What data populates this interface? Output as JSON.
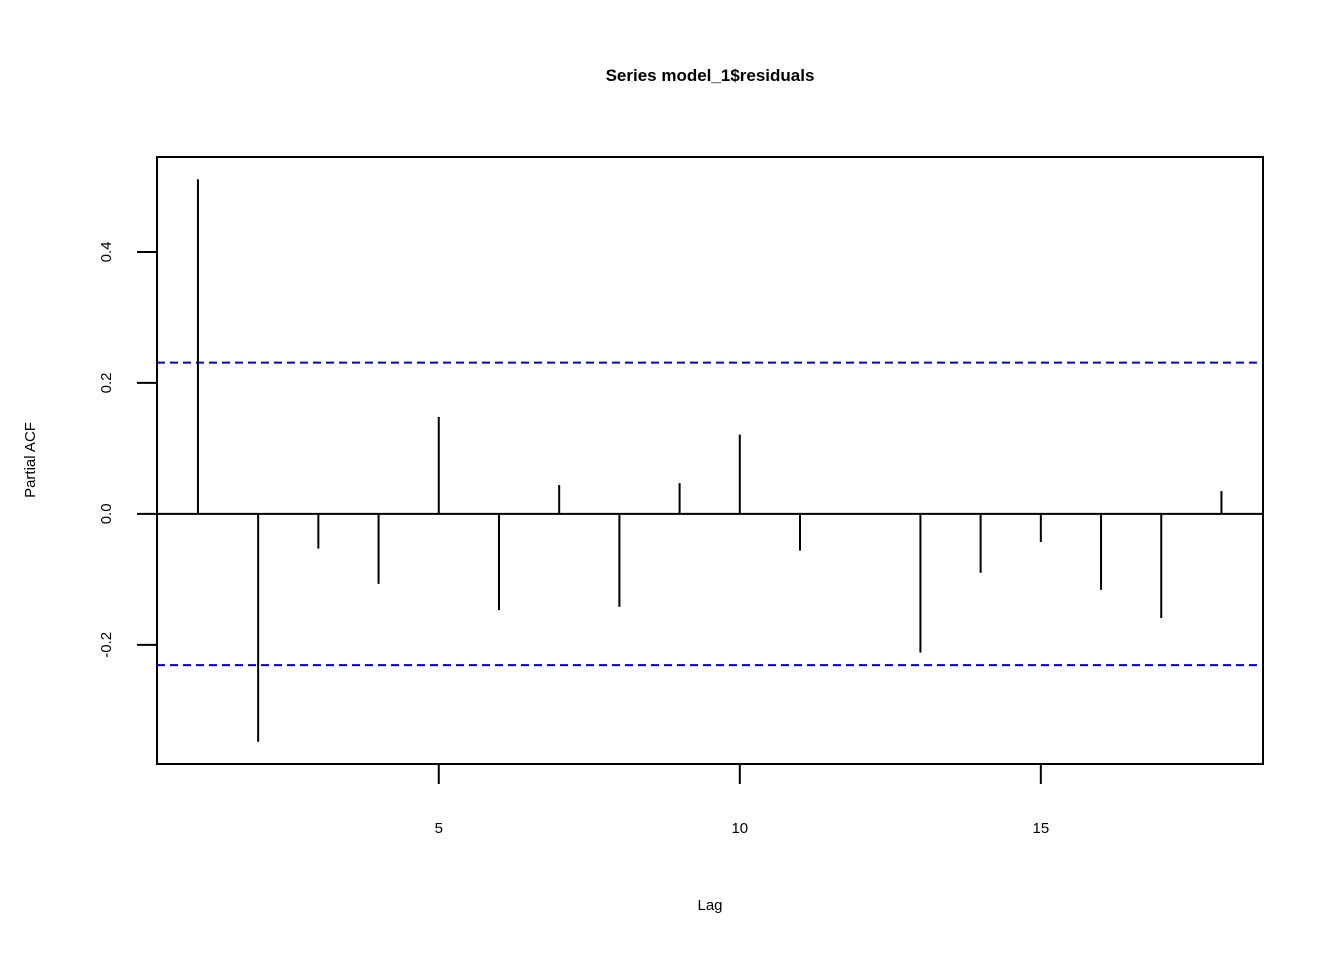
{
  "chart_data": {
    "type": "pacf",
    "title": "Series  model_1$residuals",
    "xlabel": "Lag",
    "ylabel": "Partial ACF",
    "x": [
      1,
      2,
      3,
      4,
      5,
      6,
      7,
      8,
      9,
      10,
      11,
      12,
      13,
      14,
      15,
      16,
      17,
      18
    ],
    "values": [
      0.511,
      -0.348,
      -0.053,
      -0.107,
      0.148,
      -0.147,
      0.044,
      -0.142,
      0.047,
      0.121,
      -0.056,
      0,
      -0.212,
      -0.09,
      -0.043,
      -0.116,
      -0.159,
      0.035
    ],
    "color": "#000000",
    "ci": [
      0.231,
      -0.231
    ],
    "ci_color": "#0000cc",
    "xlim": [
      0.32,
      18.69
    ],
    "ylim": [
      -0.382,
      0.545
    ],
    "xticks": [
      5,
      10,
      15
    ],
    "yticks": [
      -0.2,
      {
        "value": 0,
        "label": "0.0"
      },
      0.2,
      0.4
    ]
  }
}
